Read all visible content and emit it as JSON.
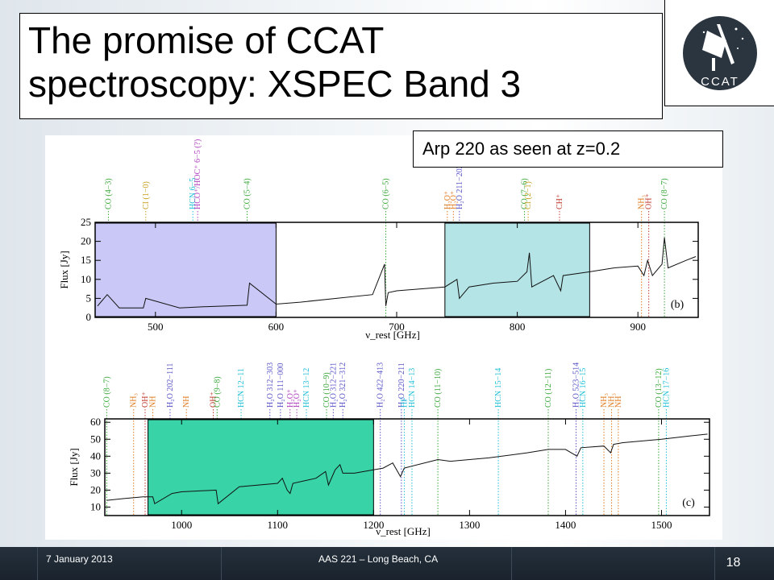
{
  "slide": {
    "title_line1": "The promise of CCAT",
    "title_line2": "spectroscopy: XSPEC Band 3",
    "logo_text": "CCAT",
    "annotation": "Arp 220 as seen at z=0.2"
  },
  "footer": {
    "date": "7 January 2013",
    "venue": "AAS 221 – Long Beach, CA",
    "page": "18"
  },
  "colors": {
    "band_b_left": "#c9c8f6",
    "band_b_right": "#b4e4e6",
    "band_c": "#38d3a7",
    "co": "#3aa83a",
    "ci": "#c8a020",
    "hcn": "#22c0d8",
    "water": "#5a55c8",
    "hcoplus": "#b040c0",
    "nh3": "#e07a20",
    "ohplus": "#e07a20",
    "ch": "#c0392b"
  },
  "chart_data": [
    {
      "type": "line",
      "panel": "(b)",
      "xlabel": "ν_rest [GHz]",
      "ylabel": "Flux [Jy]",
      "xlim": [
        450,
        950
      ],
      "ylim": [
        0,
        25
      ],
      "xticks": [
        "500",
        "600",
        "700",
        "800",
        "900"
      ],
      "yticks": [
        "0",
        "5",
        "10",
        "15",
        "20",
        "25"
      ],
      "series": [
        {
          "x": [
            452,
            460,
            470,
            490,
            492,
            520,
            540,
            560,
            576,
            578,
            600,
            620,
            650,
            680,
            690,
            691,
            693,
            700,
            720,
            740,
            750,
            752,
            760,
            780,
            800,
            808,
            810,
            812,
            830,
            836,
            838,
            860,
            880,
            900,
            905,
            908,
            912,
            920,
            922,
            925,
            940,
            948
          ],
          "y": [
            3,
            6,
            2.5,
            2.5,
            5,
            2.5,
            2.8,
            3,
            3.2,
            9,
            3.5,
            4,
            5,
            6,
            14,
            3,
            6.5,
            7,
            7.5,
            8,
            10,
            5,
            8,
            9,
            9.5,
            12,
            17,
            8,
            11,
            7,
            11,
            12,
            13,
            13.5,
            11,
            15,
            11,
            14,
            21,
            13,
            15,
            16
          ]
        }
      ],
      "highlight_ranges": [
        [
          450,
          600
        ],
        [
          740,
          860
        ]
      ],
      "line_labels": [
        {
          "label": "CO (4−3)",
          "x": 461,
          "group": "co"
        },
        {
          "label": "CI (1−0)",
          "x": 492,
          "group": "ci"
        },
        {
          "label": "HCN 6−5",
          "x": 531,
          "group": "hcn"
        },
        {
          "label": "HCO⁺/HOC⁺ 6−5 (?)",
          "x": 535,
          "group": "hcoplus"
        },
        {
          "label": "CO (5−4)",
          "x": 576,
          "group": "co"
        },
        {
          "label": "CO (6−5)",
          "x": 691,
          "group": "co"
        },
        {
          "label": "H₂O⁺",
          "x": 742,
          "group": "ohplus"
        },
        {
          "label": "H₂O⁺",
          "x": 747,
          "group": "ohplus"
        },
        {
          "label": "H₂O 211−202",
          "x": 752,
          "group": "water"
        },
        {
          "label": "CO (7−6)",
          "x": 806,
          "group": "co"
        },
        {
          "label": "CI (2−1)",
          "x": 809,
          "group": "ci"
        },
        {
          "label": "CH⁺",
          "x": 835,
          "group": "ch"
        },
        {
          "label": "NH₃",
          "x": 903,
          "group": "nh3"
        },
        {
          "label": "OH⁺",
          "x": 909,
          "group": "ch"
        },
        {
          "label": "CO (8−7)",
          "x": 922,
          "group": "co"
        }
      ]
    },
    {
      "type": "line",
      "panel": "(c)",
      "xlabel": "ν_rest [GHz]",
      "ylabel": "Flux [Jy]",
      "xlim": [
        920,
        1550
      ],
      "ylim": [
        5,
        62
      ],
      "xticks": [
        "1000",
        "1100",
        "1200",
        "1300",
        "1400",
        "1500"
      ],
      "yticks": [
        "10",
        "20",
        "30",
        "40",
        "50",
        "60"
      ],
      "series": [
        {
          "x": [
            922,
            940,
            960,
            970,
            972,
            990,
            1000,
            1036,
            1038,
            1060,
            1100,
            1105,
            1110,
            1113,
            1116,
            1140,
            1150,
            1153,
            1160,
            1165,
            1168,
            1180,
            1210,
            1220,
            1228,
            1232,
            1260,
            1267,
            1280,
            1320,
            1360,
            1382,
            1400,
            1412,
            1416,
            1440,
            1447,
            1450,
            1460,
            1500,
            1530,
            1548
          ],
          "y": [
            14,
            15,
            16,
            16,
            12,
            18,
            19,
            20,
            12,
            22,
            24,
            27,
            20,
            18,
            24,
            27,
            31,
            23,
            32,
            35,
            30,
            30,
            33,
            36,
            28,
            33,
            37,
            38,
            37,
            39,
            42,
            44,
            44,
            40,
            45,
            46,
            42,
            47,
            48,
            50,
            52,
            53
          ]
        }
      ],
      "highlight_ranges": [
        [
          965,
          1200
        ]
      ],
      "line_labels": [
        {
          "label": "CO (8−7)",
          "x": 922,
          "group": "co"
        },
        {
          "label": "NH₃",
          "x": 950,
          "group": "nh3"
        },
        {
          "label": "OH⁺",
          "x": 962,
          "group": "ch"
        },
        {
          "label": "NH",
          "x": 970,
          "group": "nh3"
        },
        {
          "label": "H₂O 202−111",
          "x": 988,
          "group": "water"
        },
        {
          "label": "NH",
          "x": 1005,
          "group": "nh3"
        },
        {
          "label": "OH⁺",
          "x": 1033,
          "group": "ch"
        },
        {
          "label": "CO (9−8)",
          "x": 1037,
          "group": "co"
        },
        {
          "label": "HCN 12−11",
          "x": 1062,
          "group": "hcn"
        },
        {
          "label": "H₂O 312−303",
          "x": 1092,
          "group": "water"
        },
        {
          "label": "H₂O 111−000",
          "x": 1103,
          "group": "water"
        },
        {
          "label": "H₂O⁺",
          "x": 1113,
          "group": "hcoplus"
        },
        {
          "label": "H₂O⁺",
          "x": 1120,
          "group": "hcoplus"
        },
        {
          "label": "HCN 13−12",
          "x": 1130,
          "group": "hcn"
        },
        {
          "label": "CO (10−9)",
          "x": 1151,
          "group": "co"
        },
        {
          "label": "H₂O 312−221",
          "x": 1158,
          "group": "water"
        },
        {
          "label": "H₂O 321−312",
          "x": 1168,
          "group": "water"
        },
        {
          "label": "H₂O 422−413",
          "x": 1207,
          "group": "water"
        },
        {
          "label": "H₂O 220−211",
          "x": 1229,
          "group": "water"
        },
        {
          "label": "HF",
          "x": 1232,
          "group": "hcn"
        },
        {
          "label": "HCN 14−13",
          "x": 1240,
          "group": "hcn"
        },
        {
          "label": "CO (11−10)",
          "x": 1267,
          "group": "co"
        },
        {
          "label": "HCN 15−14",
          "x": 1330,
          "group": "hcn"
        },
        {
          "label": "CO (12−11)",
          "x": 1382,
          "group": "co"
        },
        {
          "label": "H₂O 523−514",
          "x": 1411,
          "group": "water"
        },
        {
          "label": "HCN 16−15",
          "x": 1418,
          "group": "hcn"
        },
        {
          "label": "NH₃",
          "x": 1440,
          "group": "nh3"
        },
        {
          "label": "NH₃",
          "x": 1448,
          "group": "nh3"
        },
        {
          "label": "NH",
          "x": 1455,
          "group": "nh3"
        },
        {
          "label": "CO (13−12)",
          "x": 1497,
          "group": "co"
        },
        {
          "label": "HCN 17−16",
          "x": 1505,
          "group": "hcn"
        }
      ]
    }
  ]
}
